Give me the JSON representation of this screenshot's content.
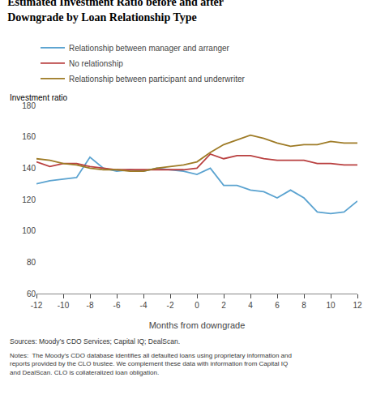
{
  "chart_data": {
    "type": "line",
    "title": "Estimated Investment Ratio before and after\nDowngrade by Loan Relationship Type",
    "xlabel": "Months from downgrade",
    "ylabel": "Investment ratio",
    "x": [
      -12,
      -11,
      -10,
      -9,
      -8,
      -7,
      -6,
      -5,
      -4,
      -3,
      -2,
      -1,
      0,
      1,
      2,
      3,
      4,
      5,
      6,
      7,
      8,
      9,
      10,
      11,
      12
    ],
    "series": [
      {
        "name": "Relationship between manager and arranger",
        "color": "#5ba3d0",
        "values": [
          130,
          132,
          133,
          134,
          147,
          140,
          138,
          139,
          138,
          140,
          139,
          138,
          136,
          140,
          129,
          129,
          126,
          125,
          121,
          126,
          121,
          112,
          111,
          112,
          119
        ]
      },
      {
        "name": "No relationship",
        "color": "#b94040",
        "values": [
          144,
          141,
          143,
          143,
          141,
          140,
          139,
          139,
          139,
          139,
          139,
          139,
          140,
          149,
          146,
          148,
          148,
          146,
          145,
          145,
          145,
          143,
          143,
          142,
          142
        ]
      },
      {
        "name": "Relationship between participant and underwriter",
        "color": "#9e7b26",
        "values": [
          146,
          145,
          143,
          142,
          140,
          139,
          139,
          138,
          138,
          140,
          141,
          142,
          144,
          150,
          155,
          158,
          161,
          159,
          156,
          154,
          155,
          155,
          157,
          156,
          156
        ]
      }
    ],
    "xlim": [
      -12,
      12
    ],
    "xticks": [
      -12,
      -10,
      -8,
      -6,
      -4,
      -2,
      0,
      2,
      4,
      6,
      8,
      10,
      12
    ],
    "ylim": [
      60,
      180
    ],
    "yticks": [
      60,
      80,
      100,
      120,
      140,
      160,
      180
    ],
    "grid": false,
    "legend": "top",
    "annotations": [
      "Sources: Moody’s CDO Services; Capital IQ; DealScan.",
      "Notes:  The Moody’s CDO database identifies all defaulted loans using proprietary information and\nreports provided by the CLO trustee. We complement these data with information from Capital IQ\nand DealScan. CLO is collateralized loan obligation."
    ]
  }
}
